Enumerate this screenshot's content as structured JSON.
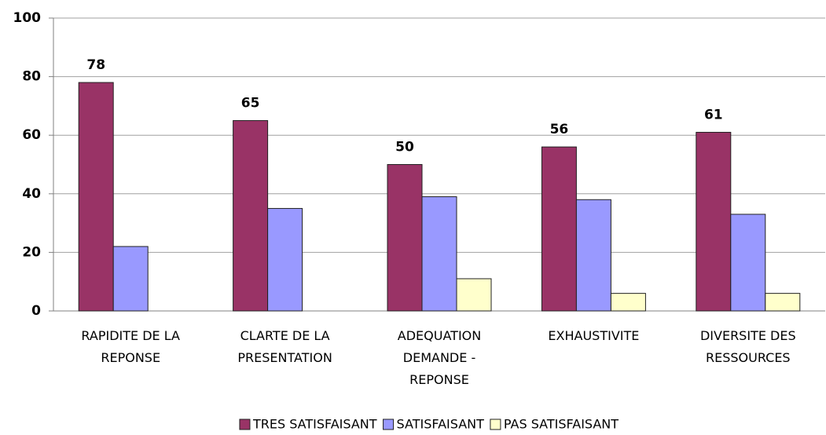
{
  "chart_data": {
    "type": "bar",
    "categories": [
      "RAPIDITE DE LA\nREPONSE",
      "CLARTE DE LA\nPRESENTATION",
      "ADEQUATION\nDEMANDE -\nREPONSE",
      "EXHAUSTIVITE",
      "DIVERSITE DES\nRESSOURCES"
    ],
    "series": [
      {
        "name": "TRES SATISFAISANT",
        "color": "#993366",
        "values": [
          78,
          65,
          50,
          56,
          61
        ],
        "show_labels": true
      },
      {
        "name": "SATISFAISANT",
        "color": "#9999ff",
        "values": [
          22,
          35,
          39,
          38,
          33
        ]
      },
      {
        "name": "PAS SATISFAISANT",
        "color": "#ffffcc",
        "values": [
          null,
          null,
          11,
          6,
          6
        ]
      }
    ],
    "ylim": [
      0,
      100
    ],
    "yticks": [
      0,
      20,
      40,
      60,
      80,
      100
    ],
    "grid": true,
    "legend": "bottom"
  }
}
